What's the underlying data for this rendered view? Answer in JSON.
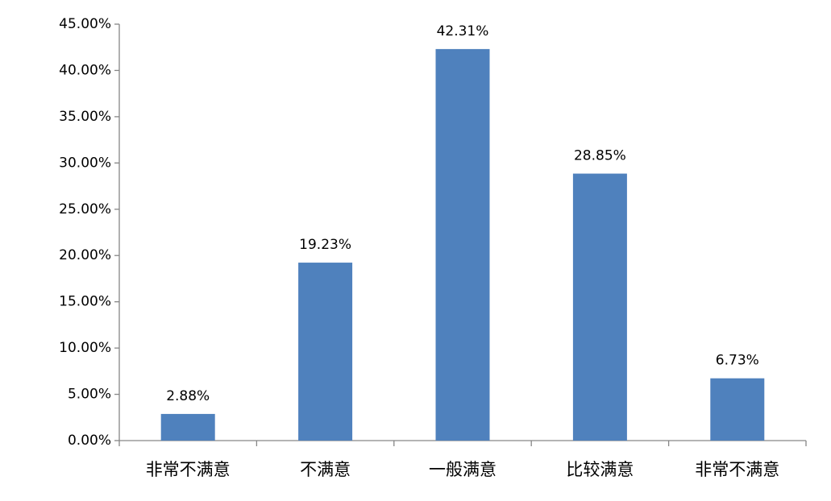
{
  "chart_data": {
    "type": "bar",
    "categories": [
      "非常不满意",
      "不满意",
      "一般满意",
      "比较满意",
      "非常不满意"
    ],
    "values": [
      2.88,
      19.23,
      42.31,
      28.85,
      6.73
    ],
    "data_labels": [
      "2.88%",
      "19.23%",
      "42.31%",
      "28.85%",
      "6.73%"
    ],
    "ylim": [
      0,
      45
    ],
    "y_ticks": [
      0,
      5,
      10,
      15,
      20,
      25,
      30,
      35,
      40,
      45
    ],
    "y_tick_labels": [
      "0.00%",
      "5.00%",
      "10.00%",
      "15.00%",
      "20.00%",
      "25.00%",
      "30.00%",
      "35.00%",
      "40.00%",
      "45.00%"
    ],
    "bar_color": "#4F81BD",
    "grid": false,
    "legend": "none"
  }
}
